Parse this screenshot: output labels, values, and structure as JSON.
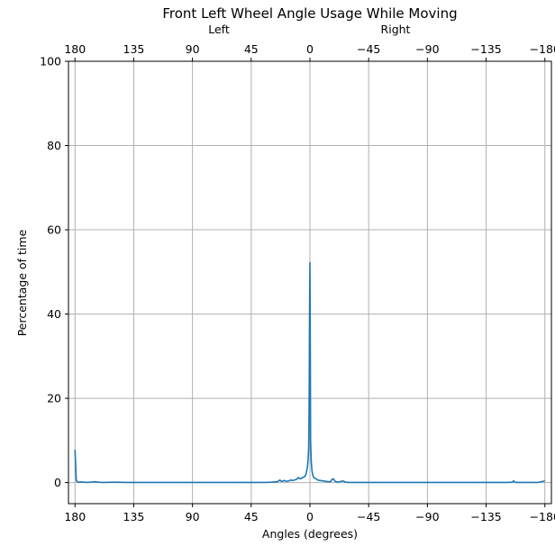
{
  "chart_data": {
    "type": "line",
    "title": "Front Left Wheel Angle Usage While Moving",
    "xlabel": "Angles (degrees)",
    "ylabel": "Percentage of time",
    "top_axis_labels": {
      "left": "Left",
      "right": "Right"
    },
    "xlim": [
      185,
      -185
    ],
    "ylim": [
      -5,
      100
    ],
    "x_reversed": true,
    "grid": true,
    "x_ticks": [
      180,
      135,
      90,
      45,
      0,
      -45,
      -90,
      -135,
      -180
    ],
    "x_tick_labels": [
      "180",
      "135",
      "90",
      "45",
      "0",
      "−45",
      "−90",
      "−135",
      "−180"
    ],
    "y_ticks": [
      0,
      20,
      40,
      60,
      80,
      100
    ],
    "y_tick_labels": [
      "0",
      "20",
      "40",
      "60",
      "80",
      "100"
    ],
    "series": [
      {
        "color": "#1f77b4",
        "x": [
          180,
          179,
          178,
          175,
          170,
          165,
          160,
          150,
          140,
          130,
          120,
          110,
          100,
          90,
          80,
          70,
          60,
          50,
          40,
          35,
          30,
          25,
          23,
          22,
          21,
          20,
          18,
          16,
          15,
          13,
          11,
          10,
          9,
          8,
          7,
          6,
          5,
          4,
          3,
          2,
          1.5,
          1,
          0.7,
          0.5,
          0.3,
          0,
          -0.3,
          -0.5,
          -1,
          -1.5,
          -2,
          -2.5,
          -3,
          -4,
          -5,
          -6,
          -8,
          -10,
          -12,
          -14,
          -15,
          -16,
          -17,
          -18,
          -19,
          -20,
          -22,
          -25,
          -26,
          -27,
          -30,
          -40,
          -50,
          -60,
          -80,
          -100,
          -120,
          -140,
          -150,
          -155,
          -156,
          -157,
          -160,
          -170,
          -175,
          -180
        ],
        "y": [
          7.8,
          0.5,
          0.1,
          0.15,
          0.05,
          0.2,
          0.05,
          0.1,
          0.05,
          0.05,
          0.05,
          0.05,
          0.05,
          0.05,
          0.05,
          0.05,
          0.05,
          0.05,
          0.05,
          0.05,
          0.1,
          0.2,
          0.6,
          0.3,
          0.3,
          0.5,
          0.3,
          0.4,
          0.6,
          0.5,
          0.7,
          0.8,
          1.2,
          1.0,
          0.9,
          1.1,
          1.3,
          1.4,
          2.0,
          3.5,
          5.0,
          8.0,
          15.0,
          25.0,
          40.0,
          52.2,
          30.0,
          10.0,
          5.0,
          3.0,
          2.0,
          1.5,
          1.2,
          1.0,
          0.8,
          0.6,
          0.5,
          0.4,
          0.3,
          0.2,
          0.2,
          0.3,
          0.8,
          0.9,
          0.4,
          0.2,
          0.1,
          0.4,
          0.3,
          0.1,
          0.05,
          0.05,
          0.05,
          0.05,
          0.05,
          0.05,
          0.05,
          0.05,
          0.05,
          0.1,
          0.4,
          0.1,
          0.05,
          0.05,
          0.05,
          0.4
        ]
      }
    ]
  }
}
